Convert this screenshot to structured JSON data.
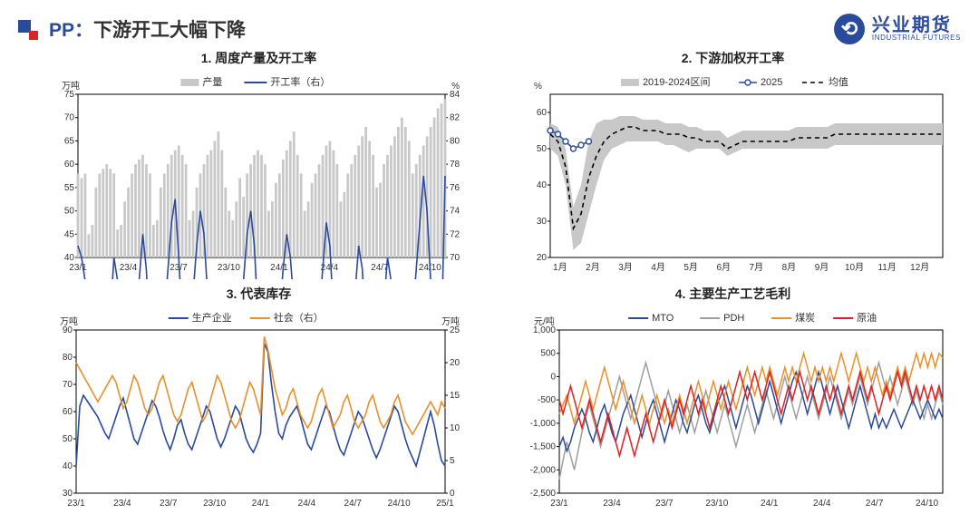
{
  "header": {
    "title_pp": "PP：",
    "title_body": "下游开工大幅下降",
    "logo_cn": "兴业期货",
    "logo_en": "INDUSTRIAL FUTURES"
  },
  "chart1": {
    "title": "1. 周度产量及开工率",
    "ylabel_left": "万吨",
    "ylabel_right": "%",
    "legend_bar": "产量",
    "legend_line": "开工率（右）",
    "colors": {
      "bar": "#c8c8c8",
      "line": "#2a4a9c",
      "axis": "#000000"
    },
    "left_lim": [
      40,
      75
    ],
    "left_ticks": [
      40,
      45,
      50,
      55,
      60,
      65,
      70,
      75
    ],
    "right_lim": [
      70,
      84
    ],
    "right_ticks": [
      70,
      72,
      74,
      76,
      78,
      80,
      82,
      84
    ],
    "x_labels": [
      "23/1",
      "23/4",
      "23/7",
      "23/10",
      "24/1",
      "24/4",
      "24/7",
      "24/10"
    ],
    "bars": [
      58,
      57,
      58,
      45,
      47,
      55,
      58,
      59,
      60,
      59,
      58,
      46,
      47,
      52,
      55,
      58,
      60,
      61,
      62,
      60,
      58,
      47,
      48,
      55,
      58,
      60,
      62,
      63,
      64,
      62,
      60,
      48,
      50,
      55,
      58,
      60,
      62,
      63,
      65,
      67,
      63,
      55,
      50,
      48,
      52,
      57,
      53,
      58,
      60,
      62,
      63,
      62,
      60,
      50,
      52,
      56,
      58,
      61,
      63,
      65,
      67,
      62,
      58,
      50,
      52,
      56,
      58,
      60,
      62,
      64,
      65,
      63,
      60,
      52,
      54,
      58,
      60,
      62,
      64,
      66,
      68,
      65,
      62,
      55,
      56,
      60,
      62,
      64,
      66,
      68,
      70,
      68,
      65,
      58,
      60,
      62,
      64,
      66,
      68,
      70,
      72,
      73,
      74
    ],
    "line": [
      71,
      70,
      68,
      65,
      60,
      59,
      61,
      63,
      64,
      65,
      70,
      68,
      63,
      58,
      56,
      60,
      64,
      68,
      72,
      69,
      63,
      67,
      61,
      63,
      65,
      69,
      73,
      75,
      70,
      64,
      60,
      63,
      67,
      71,
      74,
      72,
      67,
      61,
      58,
      55,
      56,
      58,
      60,
      63,
      61,
      65,
      68,
      72,
      74,
      71,
      65,
      59,
      55,
      53,
      57,
      61,
      65,
      69,
      72,
      70,
      66,
      60,
      54,
      51,
      53,
      57,
      61,
      65,
      69,
      73,
      71,
      65,
      58,
      52,
      55,
      59,
      63,
      67,
      71,
      69,
      63,
      57,
      55,
      58,
      62,
      66,
      70,
      68,
      62,
      56,
      54,
      57,
      61,
      65,
      69,
      73,
      77,
      74,
      68,
      62,
      58,
      63,
      77
    ]
  },
  "chart2": {
    "title": "2. 下游加权开工率",
    "ylabel": "%",
    "legend_band": "2019-2024区间",
    "legend_line": "2025",
    "legend_dash": "均值",
    "colors": {
      "band": "#c8c8c8",
      "line": "#2a4a9c",
      "dash": "#000000",
      "axis": "#000000",
      "marker_fill": "#ffffff"
    },
    "ylim": [
      20,
      65
    ],
    "yticks": [
      20,
      30,
      40,
      50,
      60
    ],
    "x_labels": [
      "1月",
      "2月",
      "3月",
      "4月",
      "5月",
      "6月",
      "7月",
      "8月",
      "9月",
      "10月",
      "11月",
      "12月"
    ],
    "band_upper": [
      57,
      56,
      50,
      34,
      40,
      52,
      57,
      58,
      58,
      59,
      59,
      59,
      58,
      58,
      58,
      57,
      57,
      57,
      56,
      56,
      55,
      55,
      55,
      53,
      54,
      55,
      55,
      55,
      55,
      55,
      55,
      55,
      56,
      56,
      56,
      56,
      56,
      57,
      57,
      57,
      57,
      57,
      57,
      57,
      57,
      57,
      57,
      57,
      57,
      57,
      57,
      57
    ],
    "band_lower": [
      50,
      48,
      40,
      22,
      24,
      32,
      40,
      47,
      50,
      51,
      52,
      52,
      52,
      52,
      52,
      51,
      51,
      50,
      49,
      50,
      50,
      50,
      50,
      48,
      49,
      50,
      50,
      50,
      50,
      50,
      50,
      50,
      50,
      50,
      50,
      50,
      50,
      51,
      51,
      51,
      51,
      51,
      51,
      51,
      51,
      51,
      51,
      51,
      51,
      51,
      51,
      51
    ],
    "mean": [
      54,
      52,
      45,
      28,
      32,
      42,
      48,
      52,
      54,
      55,
      56,
      56,
      55,
      55,
      55,
      54,
      54,
      54,
      53,
      53,
      52,
      52,
      52,
      50,
      51,
      52,
      52,
      52,
      52,
      52,
      52,
      52,
      53,
      53,
      53,
      53,
      53,
      54,
      54,
      54,
      54,
      54,
      54,
      54,
      54,
      54,
      54,
      54,
      54,
      54,
      54,
      54
    ],
    "line2025": [
      55,
      54,
      52,
      50,
      51,
      52
    ]
  },
  "chart3": {
    "title": "3. 代表库存",
    "ylabel_left": "万吨",
    "ylabel_right": "万吨",
    "legend_a": "生产企业",
    "legend_b": "社会（右）",
    "colors": {
      "a": "#2a4a9c",
      "b": "#e8902a",
      "axis": "#000000"
    },
    "left_lim": [
      30,
      90
    ],
    "left_ticks": [
      30,
      40,
      50,
      60,
      70,
      80,
      90
    ],
    "right_lim": [
      0,
      25
    ],
    "right_ticks": [
      0,
      5,
      10,
      15,
      20,
      25
    ],
    "x_labels": [
      "23/1",
      "23/4",
      "23/7",
      "23/10",
      "24/1",
      "24/4",
      "24/7",
      "24/10",
      "25/1"
    ],
    "series_a": [
      40,
      62,
      66,
      64,
      62,
      60,
      58,
      55,
      52,
      50,
      54,
      58,
      62,
      65,
      60,
      55,
      50,
      48,
      52,
      56,
      60,
      64,
      62,
      58,
      53,
      49,
      46,
      50,
      55,
      57,
      52,
      48,
      46,
      50,
      54,
      58,
      62,
      60,
      55,
      50,
      47,
      50,
      54,
      58,
      62,
      60,
      55,
      50,
      47,
      45,
      48,
      52,
      85,
      82,
      70,
      60,
      52,
      50,
      55,
      58,
      60,
      62,
      58,
      53,
      48,
      46,
      50,
      54,
      58,
      62,
      60,
      55,
      50,
      46,
      44,
      48,
      52,
      56,
      60,
      58,
      54,
      50,
      46,
      43,
      46,
      50,
      54,
      58,
      62,
      60,
      55,
      50,
      46,
      43,
      40,
      45,
      50,
      55,
      60,
      55,
      48,
      42,
      40
    ],
    "series_b": [
      20,
      19,
      18,
      17,
      16,
      15,
      14,
      15,
      16,
      17,
      18,
      17,
      15,
      13,
      14,
      16,
      18,
      17,
      15,
      13,
      12,
      13,
      15,
      17,
      18,
      16,
      14,
      12,
      11,
      12,
      14,
      16,
      17,
      15,
      13,
      11,
      12,
      14,
      16,
      18,
      17,
      15,
      13,
      11,
      10,
      11,
      13,
      15,
      17,
      16,
      14,
      12,
      24,
      22,
      19,
      16,
      14,
      12,
      13,
      15,
      16,
      14,
      12,
      11,
      10,
      11,
      13,
      15,
      16,
      14,
      12,
      10,
      11,
      12,
      14,
      15,
      13,
      11,
      10,
      11,
      12,
      14,
      15,
      13,
      11,
      10,
      11,
      12,
      14,
      15,
      13,
      11,
      10,
      9,
      10,
      11,
      12,
      13,
      14,
      13,
      12,
      14,
      13
    ]
  },
  "chart4": {
    "title": "4. 主要生产工艺毛利",
    "ylabel": "元/吨",
    "legend": {
      "mto": "MTO",
      "pdh": "PDH",
      "coal": "煤炭",
      "oil": "原油"
    },
    "colors": {
      "mto": "#2a4a9c",
      "pdh": "#9e9e9e",
      "coal": "#e8902a",
      "oil": "#e02020",
      "axis": "#000000"
    },
    "ylim": [
      -2500,
      1000
    ],
    "yticks": [
      -2500,
      -2000,
      -1500,
      -1000,
      -500,
      0,
      500,
      1000
    ],
    "x_labels": [
      "23/1",
      "23/4",
      "23/7",
      "23/10",
      "24/1",
      "24/4",
      "24/7",
      "24/10"
    ],
    "mto": [
      -1500,
      -1300,
      -1600,
      -1400,
      -1100,
      -900,
      -700,
      -900,
      -1200,
      -1400,
      -1100,
      -800,
      -600,
      -900,
      -1200,
      -1400,
      -1100,
      -800,
      -600,
      -400,
      -700,
      -1000,
      -1300,
      -1000,
      -700,
      -500,
      -800,
      -1100,
      -1400,
      -1100,
      -800,
      -500,
      -700,
      -1000,
      -1200,
      -900,
      -600,
      -400,
      -700,
      -1000,
      -1200,
      -900,
      -600,
      -400,
      -200,
      -500,
      -800,
      -1100,
      -800,
      -500,
      -200,
      -400,
      -700,
      -1000,
      -700,
      -400,
      -100,
      -400,
      -700,
      -1000,
      -700,
      -400,
      -100,
      100,
      -200,
      -500,
      -800,
      -500,
      -200,
      100,
      -200,
      -500,
      -800,
      -500,
      -200,
      -500,
      -800,
      -1100,
      -800,
      -500,
      -200,
      -500,
      -800,
      -1100,
      -800,
      -1100,
      -900,
      -1100,
      -900,
      -700,
      -900,
      -1100,
      -900,
      -700,
      -500,
      -700,
      -900,
      -700,
      -500,
      -700,
      -900,
      -700,
      -900
    ],
    "pdh": [
      -2200,
      -1800,
      -1400,
      -1700,
      -2000,
      -1600,
      -1200,
      -900,
      -600,
      -900,
      -1200,
      -1500,
      -1200,
      -900,
      -600,
      -300,
      0,
      -300,
      -600,
      -900,
      -600,
      -300,
      0,
      300,
      0,
      -300,
      -600,
      -900,
      -600,
      -300,
      -600,
      -900,
      -1200,
      -900,
      -600,
      -900,
      -1200,
      -900,
      -600,
      -300,
      -600,
      -900,
      -1200,
      -900,
      -600,
      -900,
      -1200,
      -1500,
      -1200,
      -900,
      -600,
      -900,
      -1200,
      -900,
      -600,
      -300,
      -600,
      -900,
      -600,
      -300,
      0,
      -300,
      -600,
      -900,
      -600,
      -300,
      0,
      -300,
      -600,
      -900,
      -600,
      -300,
      0,
      -300,
      -600,
      -900,
      -600,
      -300,
      -600,
      -300,
      0,
      -300,
      -600,
      -300,
      0,
      300,
      0,
      -300,
      0,
      -300,
      -600,
      -300,
      0,
      -300,
      -600,
      -300,
      -600,
      -900,
      -600,
      -900,
      -600,
      -300,
      -600
    ],
    "coal": [
      -800,
      -600,
      -400,
      -700,
      -1000,
      -700,
      -400,
      -100,
      -400,
      -700,
      -400,
      -100,
      200,
      -100,
      -400,
      -700,
      -400,
      -100,
      -400,
      -700,
      -1000,
      -700,
      -400,
      -700,
      -1000,
      -700,
      -400,
      -700,
      -1000,
      -700,
      -1000,
      -700,
      -400,
      -700,
      -1000,
      -700,
      -400,
      -100,
      -400,
      -700,
      -400,
      -100,
      -400,
      -700,
      -400,
      -100,
      -400,
      -700,
      -400,
      -100,
      200,
      -100,
      -400,
      -100,
      200,
      -100,
      200,
      -100,
      -400,
      -100,
      200,
      -100,
      200,
      -100,
      200,
      500,
      200,
      -100,
      200,
      -100,
      200,
      -100,
      200,
      -100,
      200,
      500,
      200,
      -100,
      200,
      500,
      200,
      -100,
      200,
      -100,
      200,
      -100,
      -400,
      -100,
      -400,
      -100,
      200,
      -100,
      200,
      -100,
      200,
      500,
      200,
      500,
      200,
      500,
      200,
      500,
      400
    ],
    "oil": [
      -500,
      -800,
      -500,
      -200,
      -500,
      -800,
      -1100,
      -800,
      -500,
      -800,
      -1100,
      -1400,
      -1100,
      -800,
      -1100,
      -1400,
      -1700,
      -1400,
      -1100,
      -1400,
      -1700,
      -1400,
      -1100,
      -800,
      -1100,
      -1400,
      -1100,
      -800,
      -500,
      -800,
      -1100,
      -800,
      -500,
      -800,
      -500,
      -200,
      -500,
      -800,
      -500,
      -800,
      -1100,
      -800,
      -500,
      -200,
      -500,
      -800,
      -500,
      -200,
      100,
      -200,
      -500,
      -200,
      100,
      -200,
      -500,
      -200,
      100,
      -200,
      -500,
      -800,
      -500,
      -200,
      -500,
      -200,
      100,
      -200,
      -500,
      -200,
      -500,
      -800,
      -500,
      -200,
      -500,
      -200,
      -500,
      -800,
      -500,
      -200,
      -500,
      -200,
      100,
      -200,
      -500,
      -200,
      -500,
      -800,
      -500,
      -200,
      -500,
      -200,
      100,
      -200,
      100,
      -200,
      -500,
      -200,
      -500,
      -200,
      -500,
      -200,
      -500,
      -200,
      -500
    ]
  }
}
